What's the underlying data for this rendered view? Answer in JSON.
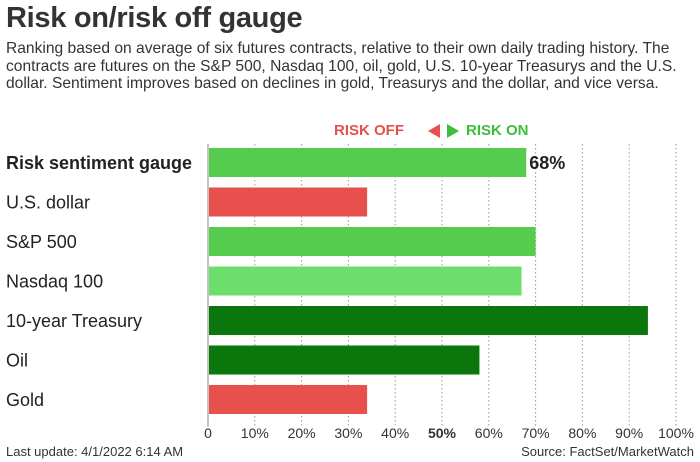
{
  "title": "Risk on/risk off gauge",
  "subtitle": "Ranking based on average of six futures contracts, relative to their own daily trading history. The contracts are futures on the S&P 500, Nasdaq 100, oil, gold, U.S. 10-year Treasurys and the U.S. dollar. Sentiment improves based on declines in gold, Treasurys and the dollar, and vice versa.",
  "legend": {
    "risk_off_label": "RISK OFF",
    "risk_on_label": "RISK ON",
    "risk_off_color": "#e8504e",
    "risk_on_color": "#3bbf3b"
  },
  "footer": {
    "last_update": "Last update: 4/1/2022 6:14 AM",
    "source": "Source: FactSet/MarketWatch"
  },
  "chart_data": {
    "type": "bar",
    "orientation": "horizontal",
    "title": "Risk on/risk off gauge",
    "xlim": [
      0,
      100
    ],
    "x_ticks": [
      "0",
      "10%",
      "20%",
      "30%",
      "40%",
      "50%",
      "60%",
      "70%",
      "80%",
      "90%",
      "100%"
    ],
    "highlight_tick": "50%",
    "grid": "vertical dotted",
    "categories": [
      "Risk sentiment gauge",
      "U.S. dollar",
      "S&P 500",
      "Nasdaq 100",
      "10-year Treasury",
      "Oil",
      "Gold"
    ],
    "values": [
      68,
      34,
      70,
      67,
      94,
      58,
      34
    ],
    "value_labels": [
      "68%",
      "",
      "",
      "",
      "",
      "",
      ""
    ],
    "bold_categories": [
      "Risk sentiment gauge"
    ],
    "colors": [
      "#55cc4e",
      "#e8504e",
      "#55cc4e",
      "#6ddd6b",
      "#0b760b",
      "#0b760b",
      "#e8504e"
    ]
  }
}
